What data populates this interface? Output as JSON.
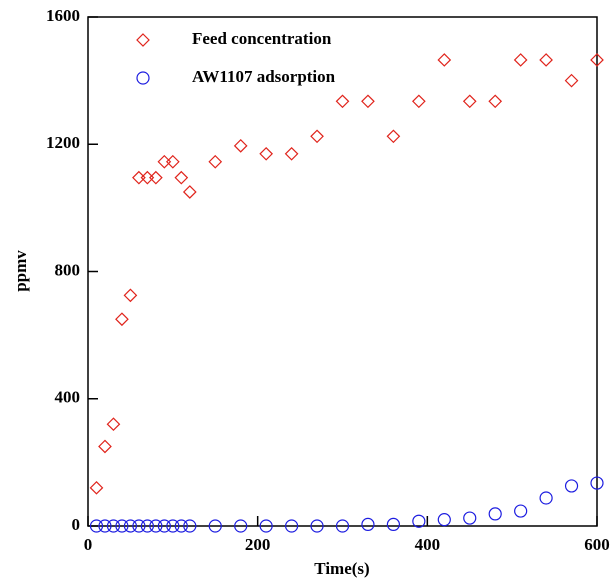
{
  "chart_data": {
    "type": "scatter",
    "xlabel": "Time(s)",
    "ylabel": "ppmv",
    "xlim": [
      0,
      600
    ],
    "xticks": [
      0,
      200,
      400,
      600
    ],
    "ylim": [
      0,
      1600
    ],
    "yticks": [
      0,
      400,
      800,
      1200,
      1600
    ],
    "series": [
      {
        "name": "Feed concentration",
        "color": "#e0241c",
        "marker": "diamond",
        "x": [
          10,
          20,
          30,
          40,
          50,
          60,
          70,
          80,
          90,
          100,
          110,
          120,
          150,
          180,
          210,
          240,
          270,
          300,
          330,
          360,
          390,
          420,
          450,
          480,
          510,
          540,
          570,
          600
        ],
        "values": [
          120,
          250,
          320,
          650,
          725,
          1095,
          1095,
          1095,
          1145,
          1145,
          1095,
          1050,
          1145,
          1195,
          1170,
          1170,
          1225,
          1335,
          1335,
          1225,
          1335,
          1465,
          1335,
          1335,
          1465,
          1465,
          1400,
          1465
        ]
      },
      {
        "name": "AW1107 adsorption",
        "color": "#1c1ce0",
        "marker": "circle",
        "x": [
          10,
          20,
          30,
          40,
          50,
          60,
          70,
          80,
          90,
          100,
          110,
          120,
          150,
          180,
          210,
          240,
          270,
          300,
          330,
          360,
          390,
          420,
          450,
          480,
          510,
          540,
          570,
          600
        ],
        "values": [
          0,
          0,
          0,
          0,
          0,
          0,
          0,
          0,
          0,
          0,
          0,
          0,
          0,
          0,
          0,
          0,
          0,
          0,
          5,
          5,
          15,
          20,
          25,
          38,
          47,
          88,
          126,
          135
        ]
      }
    ]
  }
}
